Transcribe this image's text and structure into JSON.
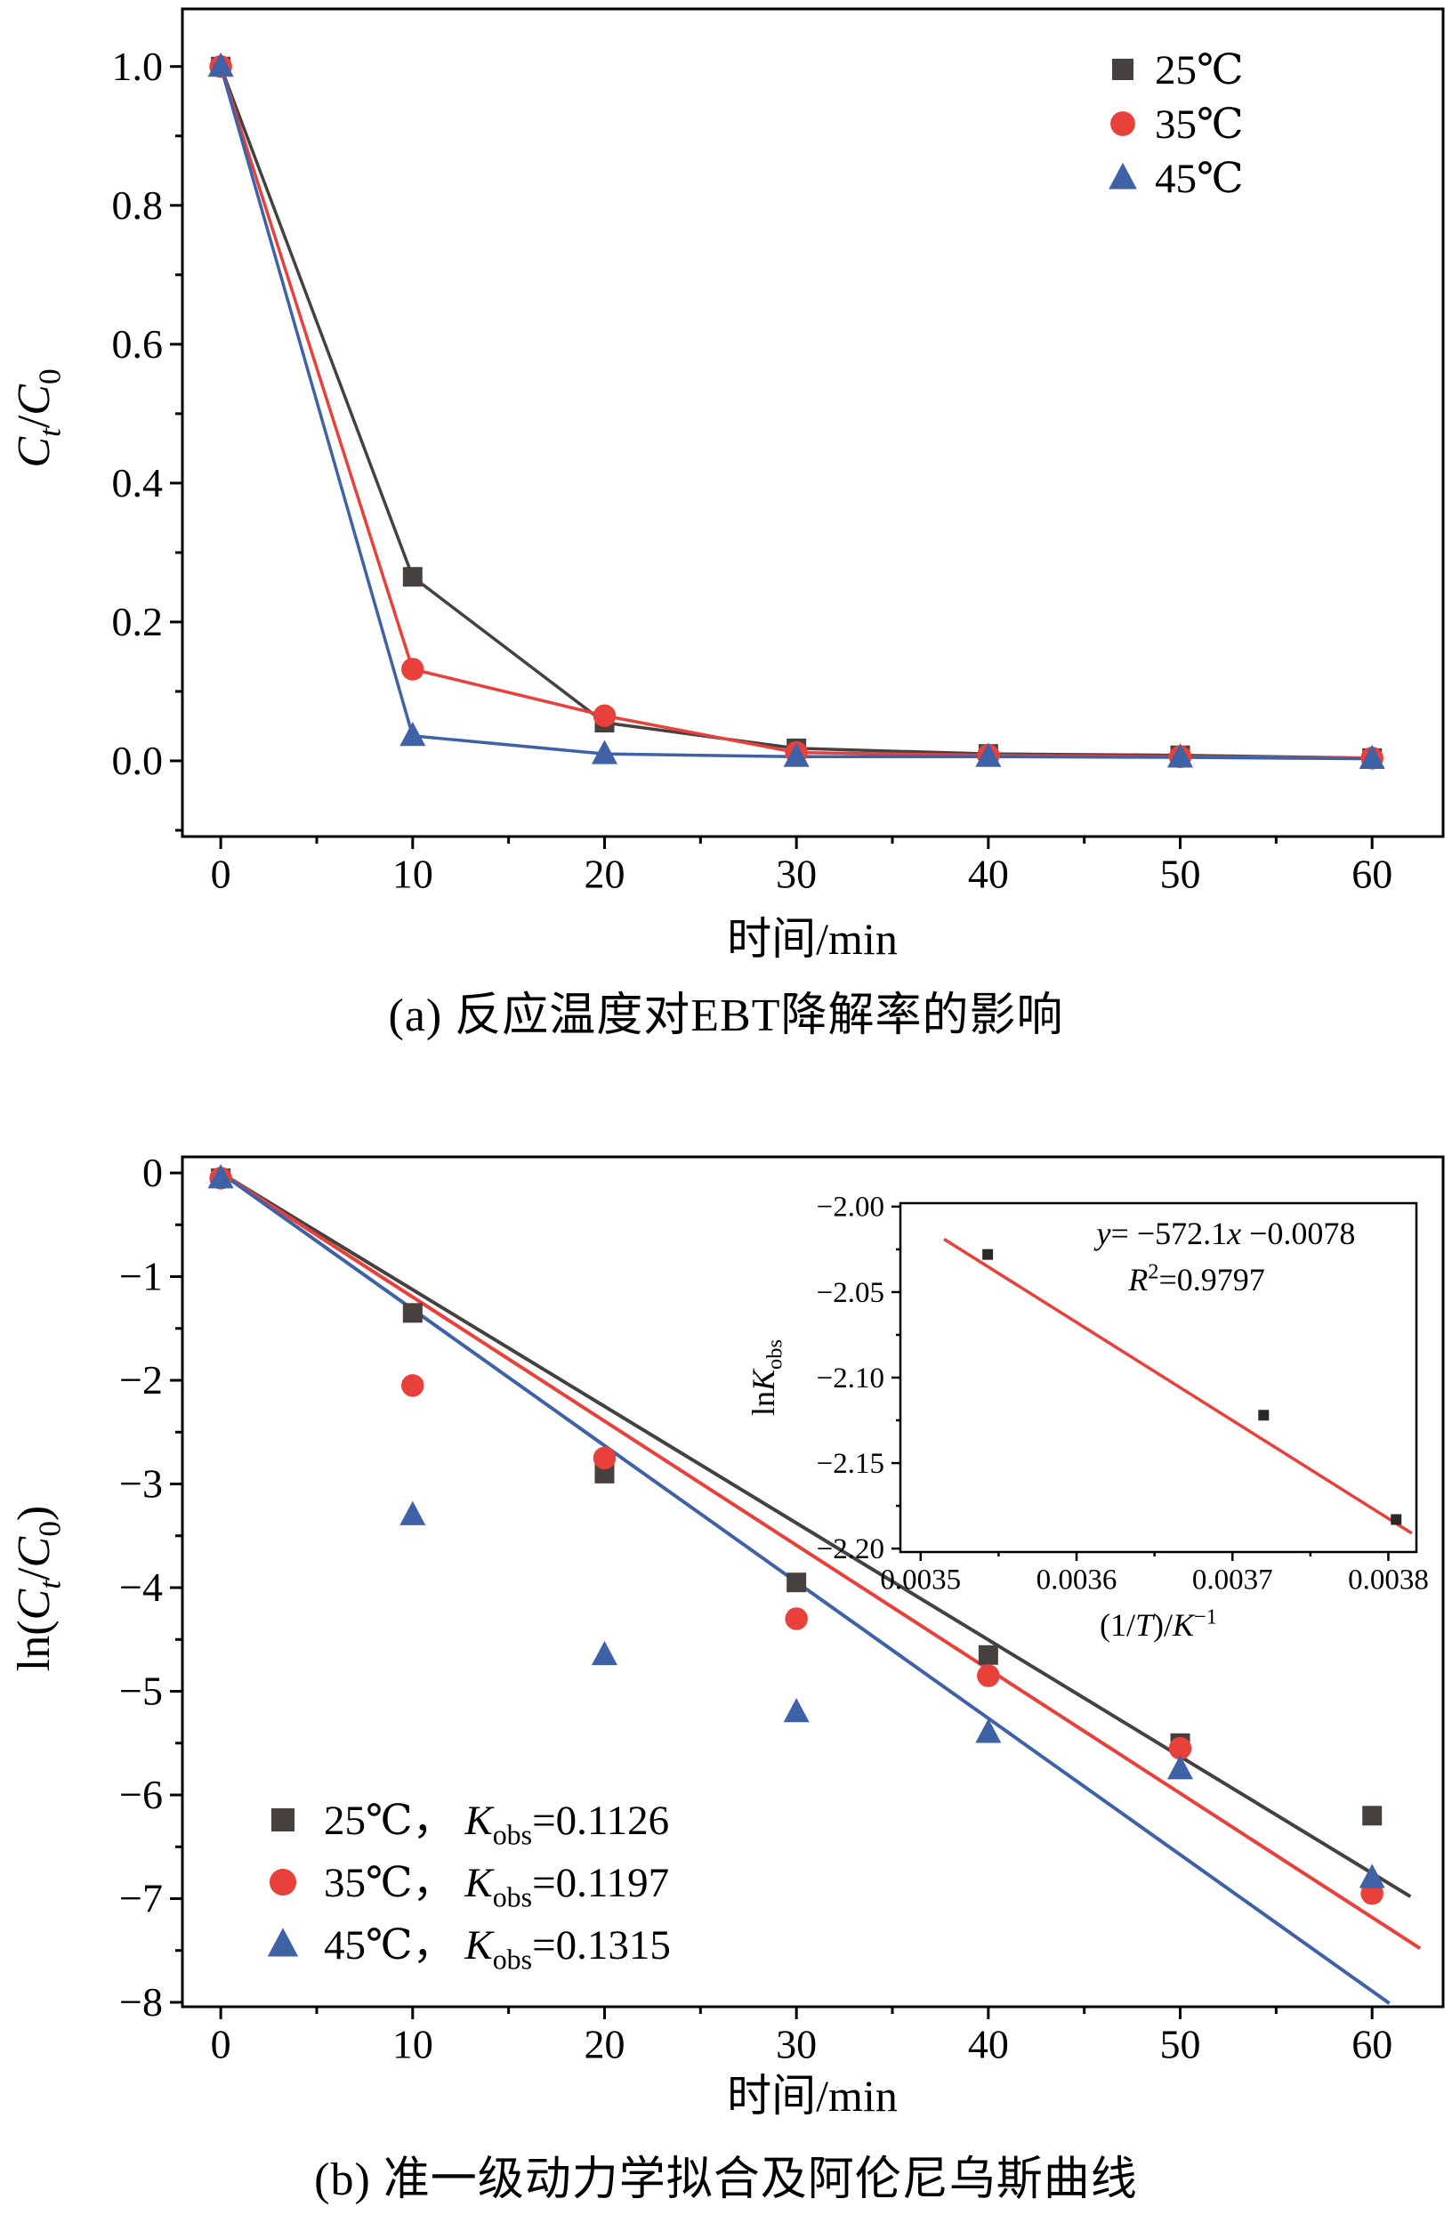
{
  "page": {
    "background": "#ffffff",
    "axis_color": "#000000"
  },
  "chart_data": [
    {
      "id": "panel_a",
      "type": "line",
      "title": "(a) 反应温度对EBT降解率的影响",
      "xlabel": "时间/min",
      "ylabel": "Ct/C0",
      "x": [
        0,
        10,
        20,
        30,
        40,
        50,
        60
      ],
      "series": [
        {
          "name": "25℃",
          "marker": "square",
          "color": "#46403e",
          "values": [
            1.0,
            0.265,
            0.055,
            0.018,
            0.01,
            0.008,
            0.004
          ]
        },
        {
          "name": "35℃",
          "marker": "circle",
          "color": "#e8403a",
          "values": [
            1.0,
            0.132,
            0.065,
            0.012,
            0.008,
            0.006,
            0.004
          ]
        },
        {
          "name": "45℃",
          "marker": "triangle",
          "color": "#3f62a7",
          "values": [
            1.0,
            0.036,
            0.01,
            0.006,
            0.006,
            0.005,
            0.003
          ]
        }
      ],
      "xlim": [
        -2,
        63.7
      ],
      "ylim": [
        -0.109,
        1.083
      ],
      "xticks": {
        "values": [
          0,
          10,
          20,
          30,
          40,
          50,
          60
        ],
        "labels": [
          "0",
          "10",
          "20",
          "30",
          "40",
          "50",
          "60"
        ]
      },
      "yticks": {
        "values": [
          0,
          0.2,
          0.4,
          0.6,
          0.8,
          1.0
        ],
        "labels": [
          "0.0",
          "0.2",
          "0.4",
          "0.6",
          "0.8",
          "1.0"
        ]
      },
      "minor_x": 5,
      "minor_y": 0.1,
      "grid": false,
      "legend_position": "top-right"
    },
    {
      "id": "panel_b",
      "type": "scatter",
      "title": "(b) 准一级动力学拟合及阿伦尼乌斯曲线",
      "xlabel": "时间/min",
      "ylabel": "ln(Ct/C0)",
      "x": [
        0,
        10,
        20,
        30,
        40,
        50,
        60
      ],
      "series": [
        {
          "name": "25℃",
          "kobs": "0.1126",
          "marker": "square",
          "color": "#46403e",
          "values": [
            -0.05,
            -1.35,
            -2.9,
            -3.95,
            -4.65,
            -5.5,
            -6.2
          ],
          "fit_line": [
            [
              0,
              0
            ],
            [
              62,
              -6.98
            ]
          ]
        },
        {
          "name": "35℃",
          "kobs": "0.1197",
          "marker": "circle",
          "color": "#e8403a",
          "values": [
            -0.05,
            -2.05,
            -2.75,
            -4.3,
            -4.85,
            -5.55,
            -6.95
          ],
          "fit_line": [
            [
              0,
              0
            ],
            [
              62.5,
              -7.48
            ]
          ]
        },
        {
          "name": "45℃",
          "kobs": "0.1315",
          "marker": "triangle",
          "color": "#3f62a7",
          "values": [
            -0.05,
            -3.3,
            -4.65,
            -5.2,
            -5.4,
            -5.75,
            -6.8
          ],
          "fit_line": [
            [
              0,
              0
            ],
            [
              60.9,
              -8.01
            ]
          ]
        }
      ],
      "xlim": [
        -2,
        63.7
      ],
      "ylim": [
        -8.043,
        0.155
      ],
      "xticks": {
        "values": [
          0,
          10,
          20,
          30,
          40,
          50,
          60
        ],
        "labels": [
          "0",
          "10",
          "20",
          "30",
          "40",
          "50",
          "60"
        ]
      },
      "yticks": {
        "values": [
          0,
          -1,
          -2,
          -3,
          -4,
          -5,
          -6,
          -7,
          -8
        ],
        "labels": [
          "0",
          "−1",
          "−2",
          "−3",
          "−4",
          "−5",
          "−6",
          "−7",
          "−8"
        ]
      },
      "minor_x": 5,
      "minor_y": 0.5,
      "grid": false,
      "legend_position": "bottom-left"
    },
    {
      "id": "inset_arrhenius",
      "type": "scatter",
      "title": "",
      "xlabel": "(1/T)/K−1",
      "ylabel": "lnKobs",
      "points": [
        [
          0.003543,
          -2.028
        ],
        [
          0.00372,
          -2.122
        ],
        [
          0.003805,
          -2.183
        ]
      ],
      "marker": "square",
      "color": "#2b2826",
      "fit_line": {
        "points": [
          [
            0.003515,
            -2.019
          ],
          [
            0.003815,
            -2.191
          ]
        ],
        "color": "#e8403a"
      },
      "equation": "y= −572.1x −0.0078",
      "r_squared": "R2=0.9797",
      "xlim": [
        0.003487,
        0.003818
      ],
      "ylim": [
        -2.202,
        -1.998
      ],
      "xticks": {
        "values": [
          0.0035,
          0.0036,
          0.0037,
          0.0038
        ],
        "labels": [
          "0.0035",
          "0.0036",
          "0.0037",
          "0.0038"
        ]
      },
      "yticks": {
        "values": [
          -2.0,
          -2.05,
          -2.1,
          -2.15,
          -2.2
        ],
        "labels": [
          "−2.00",
          "−2.05",
          "−2.10",
          "−2.15",
          "−2.20"
        ]
      },
      "minor_x": 5e-05,
      "minor_y": 0.025,
      "grid": false
    }
  ],
  "rich_text": {
    "panel_a_ylabel": [
      [
        "C",
        "i"
      ],
      [
        "t",
        "isub"
      ],
      [
        "/",
        ""
      ],
      [
        "C",
        "i"
      ],
      [
        "0",
        "sub"
      ]
    ],
    "panel_b_ylabel": [
      [
        "ln(",
        ""
      ],
      [
        "C",
        "i"
      ],
      [
        "t",
        "isub"
      ],
      [
        "/",
        ""
      ],
      [
        "C",
        "i"
      ],
      [
        "0",
        "sub"
      ],
      [
        ")",
        ""
      ]
    ],
    "inset_ylabel": [
      [
        "ln",
        ""
      ],
      [
        "K",
        "i"
      ],
      [
        "obs",
        "sub"
      ]
    ],
    "inset_xlabel": [
      [
        "(1/",
        ""
      ],
      [
        "T",
        "i"
      ],
      [
        ")/",
        ""
      ],
      [
        "K",
        "i"
      ],
      [
        "−1",
        "sup"
      ]
    ],
    "equation_line1": [
      [
        "y",
        "i"
      ],
      [
        "= −572.1",
        ""
      ],
      [
        "x",
        "i"
      ],
      [
        " −0.0078",
        ""
      ]
    ],
    "equation_line2": [
      [
        "R",
        "i"
      ],
      [
        "2",
        "sup"
      ],
      [
        "=0.9797",
        ""
      ]
    ],
    "legend_b": [
      [
        [
          "25℃， ",
          ""
        ],
        [
          "K",
          "i"
        ],
        [
          "obs",
          "sub"
        ],
        [
          "=0.1126",
          ""
        ]
      ],
      [
        [
          "35℃， ",
          ""
        ],
        [
          "K",
          "i"
        ],
        [
          "obs",
          "sub"
        ],
        [
          "=0.1197",
          ""
        ]
      ],
      [
        [
          "45℃， ",
          ""
        ],
        [
          "K",
          "i"
        ],
        [
          "obs",
          "sub"
        ],
        [
          "=0.1315",
          ""
        ]
      ]
    ]
  }
}
